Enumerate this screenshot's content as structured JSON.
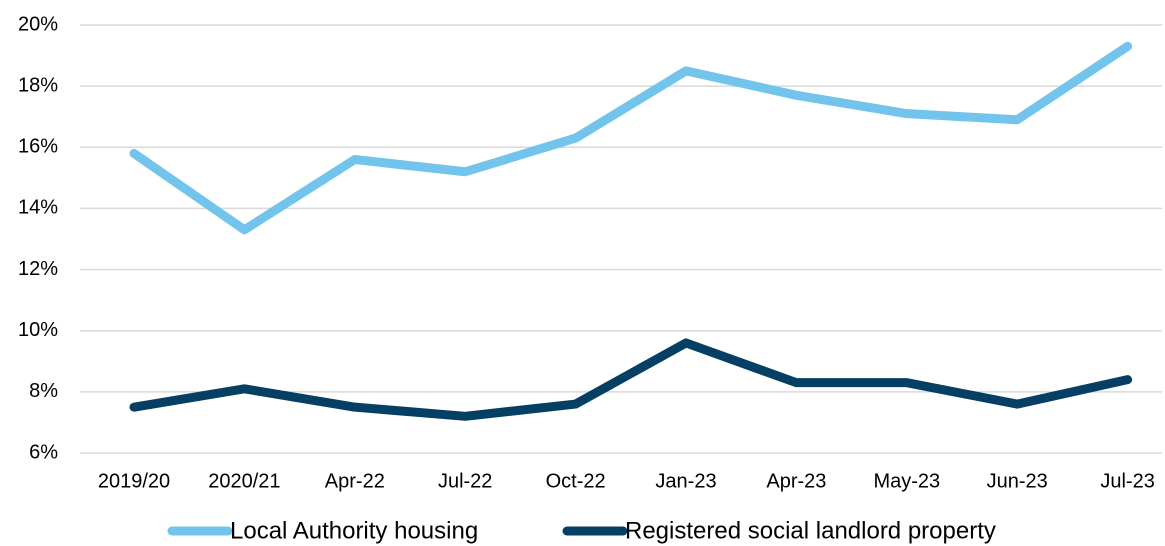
{
  "chart_data": {
    "type": "line",
    "categories": [
      "2019/20",
      "2020/21",
      "Apr-22",
      "Jul-22",
      "Oct-22",
      "Jan-23",
      "Apr-23",
      "May-23",
      "Jun-23",
      "Jul-23"
    ],
    "series": [
      {
        "name": "Local Authority housing",
        "color": "#72c4ec",
        "values": [
          15.8,
          13.3,
          15.6,
          15.2,
          16.3,
          18.5,
          17.7,
          17.1,
          16.9,
          19.3
        ]
      },
      {
        "name": "Registered social landlord property",
        "color": "#063f64",
        "values": [
          7.5,
          8.1,
          7.5,
          7.2,
          7.6,
          9.6,
          8.3,
          8.3,
          7.6,
          8.4
        ]
      }
    ],
    "ylim": [
      6,
      20
    ],
    "yticks": [
      {
        "value": 6,
        "label": "6%"
      },
      {
        "value": 8,
        "label": "8%"
      },
      {
        "value": 10,
        "label": "10%"
      },
      {
        "value": 12,
        "label": "12%"
      },
      {
        "value": 14,
        "label": "14%"
      },
      {
        "value": 16,
        "label": "16%"
      },
      {
        "value": 18,
        "label": "18%"
      },
      {
        "value": 20,
        "label": "20%"
      }
    ],
    "grid": true,
    "legend": "bottom"
  }
}
